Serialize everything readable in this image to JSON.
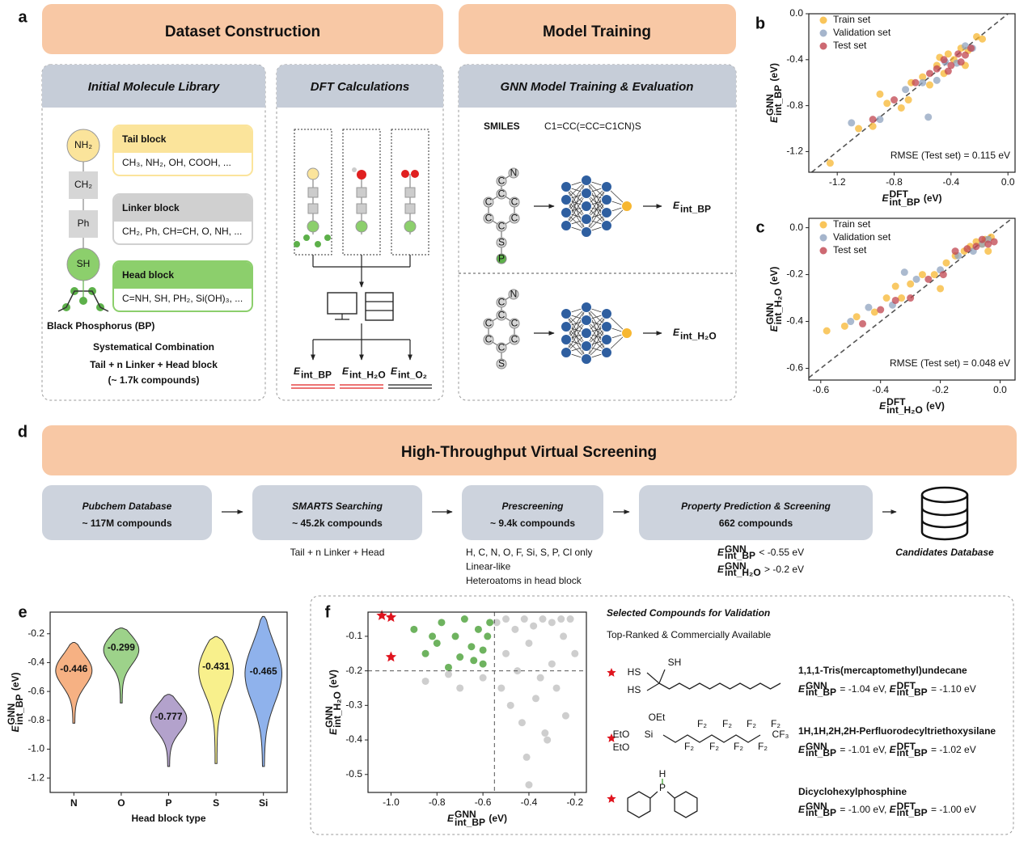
{
  "panel_labels": [
    "a",
    "b",
    "c",
    "d",
    "e",
    "f"
  ],
  "dataset": {
    "header": "Dataset Construction",
    "library": {
      "title": "Initial Molecule Library",
      "chain": [
        "NH₂",
        "CH₂",
        "Ph",
        "SH"
      ],
      "substrate": "Black Phosphorus (BP)",
      "blocks": [
        {
          "name": "Tail block",
          "examples": "CH₃, NH₂, OH, COOH, ..."
        },
        {
          "name": "Linker block",
          "examples": "CH₂, Ph, CH=CH, O, NH, ..."
        },
        {
          "name": "Head block",
          "examples": "C=NH, SH, PH₂, Si(OH)₃, ..."
        }
      ],
      "summary": [
        "Systematical Combination",
        "Tail + n Linker + Head block",
        "(~ 1.7k compounds)"
      ]
    },
    "dft": {
      "title": "DFT Calculations",
      "outputs": [
        {
          "sym": "E",
          "sub": "int_BP"
        },
        {
          "sym": "E",
          "sub": "int_H₂O"
        },
        {
          "sym": "E",
          "sub": "int_O₂"
        }
      ]
    }
  },
  "training": {
    "header": "Model Training",
    "title": "GNN Model Training & Evaluation",
    "smiles_label": "SMILES",
    "smiles": "C1=CC(=CC=C1CN)S",
    "models": [
      {
        "atoms": [
          "N",
          "C",
          "C",
          "C",
          "C",
          "C",
          "C",
          "C",
          "S",
          "P"
        ],
        "output": {
          "sym": "E",
          "sub": "int_BP"
        }
      },
      {
        "atoms": [
          "N",
          "C",
          "C",
          "C",
          "C",
          "C",
          "C",
          "C",
          "S"
        ],
        "output": {
          "sym": "E",
          "sub": "int_H₂O"
        }
      }
    ]
  },
  "screening": {
    "title": "High-Throughput Virtual Screening",
    "steps": [
      {
        "title": "Pubchem Database",
        "count": "~ 117M compounds"
      },
      {
        "title": "SMARTS Searching",
        "count": "~ 45.2k compounds",
        "notes": [
          "Tail + n Linker + Head"
        ]
      },
      {
        "title": "Prescreening",
        "count": "~ 9.4k compounds",
        "notes": [
          "H, C, N, O, F, Si, S, P, Cl only",
          "Linear-like",
          "Heteroatoms in head block"
        ]
      },
      {
        "title": "Property Prediction & Screening",
        "count": "662 compounds",
        "criteria": [
          {
            "sym": "E",
            "sup": "GNN",
            "sub": "int_BP",
            "text": " < -0.55 eV"
          },
          {
            "sym": "E",
            "sup": "GNN",
            "sub": "int_H₂O",
            "text": " > -0.2 eV"
          }
        ]
      }
    ],
    "final": "Candidates Database"
  },
  "validation": {
    "title": "Selected Compounds for Validation",
    "subtitle": "Top-Ranked & Commercially Available",
    "compounds": [
      {
        "name": "1,1,1-Tris(mercaptomethyl)undecane",
        "structure": [
          "SH",
          "HS",
          "HS"
        ],
        "energy": [
          {
            "sym": "E",
            "sup": "GNN",
            "sub": "int_BP",
            "text": " = -1.04 eV, "
          },
          {
            "sym": "E",
            "sup": "DFT",
            "sub": "int_BP",
            "text": " = -1.10 eV"
          }
        ]
      },
      {
        "name": "1H,1H,2H,2H-Perfluorodecyltriethoxysilane",
        "structure": [
          "OEt",
          "EtO",
          "Si",
          "EtO",
          "F₂",
          "F₂",
          "F₂",
          "F₂",
          "F₂",
          "F₂",
          "F₂",
          "F₂",
          "CF₃"
        ],
        "energy": [
          {
            "sym": "E",
            "sup": "GNN",
            "sub": "int_BP",
            "text": " = -1.01 eV, "
          },
          {
            "sym": "E",
            "sup": "DFT",
            "sub": "int_BP",
            "text": " = -1.02 eV"
          }
        ]
      },
      {
        "name": "Dicyclohexylphosphine",
        "structure": [
          "H",
          "P"
        ],
        "energy": [
          {
            "sym": "E",
            "sup": "GNN",
            "sub": "int_BP",
            "text": " = -1.00 eV, "
          },
          {
            "sym": "E",
            "sup": "DFT",
            "sub": "int_BP",
            "text": " = -1.00 eV"
          }
        ]
      }
    ]
  },
  "chart_data": [
    {
      "type": "scatter",
      "x_label": {
        "sym": "E",
        "sup": "DFT",
        "sub": "int_BP",
        "text": " (eV)"
      },
      "y_label": {
        "sym": "E",
        "sup": "GNN",
        "sub": "int_BP",
        "text": " (eV)"
      },
      "xlim": [
        -1.4,
        0.05
      ],
      "ylim": [
        -1.38,
        0.0
      ],
      "xticks": [
        -1.2,
        -0.8,
        -0.4,
        {
          "value": 0,
          "label": "0.0"
        }
      ],
      "yticks": [
        {
          "value": 0,
          "label": "0.0"
        },
        -0.4,
        -0.8,
        -1.2
      ],
      "diagonal": true,
      "legend": "upper left",
      "annotation": "RMSE (Test set) = 0.115 eV",
      "series": [
        {
          "name": "Train set",
          "color": "#f7b731",
          "x": [
            -1.25,
            -1.05,
            -0.95,
            -0.85,
            -0.75,
            -0.68,
            -0.6,
            -0.55,
            -0.5,
            -0.45,
            -0.42,
            -0.38,
            -0.33,
            -0.28,
            -0.22,
            -0.18,
            -0.3,
            -0.48,
            -0.9,
            -0.7
          ],
          "values": [
            -1.3,
            -1.0,
            -0.98,
            -0.78,
            -0.82,
            -0.6,
            -0.55,
            -0.62,
            -0.45,
            -0.52,
            -0.35,
            -0.4,
            -0.3,
            -0.32,
            -0.2,
            -0.22,
            -0.45,
            -0.38,
            -0.7,
            -0.75
          ]
        },
        {
          "name": "Validation set",
          "color": "#8fa3bf",
          "x": [
            -1.1,
            -0.9,
            -0.72,
            -0.6,
            -0.5,
            -0.44,
            -0.36,
            -0.3,
            -0.25,
            -0.56
          ],
          "values": [
            -0.95,
            -0.92,
            -0.66,
            -0.6,
            -0.58,
            -0.42,
            -0.43,
            -0.28,
            -0.3,
            -0.9
          ]
        },
        {
          "name": "Test set",
          "color": "#c0444f",
          "x": [
            -0.95,
            -0.8,
            -0.65,
            -0.55,
            -0.5,
            -0.45,
            -0.4,
            -0.35,
            -0.3,
            -0.26,
            -0.42,
            -0.33
          ],
          "values": [
            -0.92,
            -0.75,
            -0.6,
            -0.52,
            -0.48,
            -0.4,
            -0.45,
            -0.35,
            -0.36,
            -0.3,
            -0.5,
            -0.42
          ]
        }
      ]
    },
    {
      "type": "scatter",
      "x_label": {
        "sym": "E",
        "sup": "DFT",
        "sub": "int_H₂O",
        "text": " (eV)"
      },
      "y_label": {
        "sym": "E",
        "sup": "GNN",
        "sub": "int_H₂O",
        "text": " (eV)"
      },
      "xlim": [
        -0.64,
        0.05
      ],
      "ylim": [
        -0.65,
        0.04
      ],
      "xticks": [
        -0.6,
        -0.4,
        -0.2,
        {
          "value": 0,
          "label": "0.0"
        }
      ],
      "yticks": [
        {
          "value": 0,
          "label": "0.0"
        },
        -0.2,
        -0.4,
        -0.6
      ],
      "diagonal": true,
      "legend": "upper left",
      "annotation": "RMSE (Test set) = 0.048 eV",
      "series": [
        {
          "name": "Train set",
          "color": "#f7b731",
          "x": [
            -0.58,
            -0.52,
            -0.48,
            -0.42,
            -0.38,
            -0.33,
            -0.3,
            -0.26,
            -0.22,
            -0.18,
            -0.15,
            -0.12,
            -0.1,
            -0.08,
            -0.06,
            -0.05,
            -0.04,
            -0.03,
            -0.2,
            -0.35
          ],
          "values": [
            -0.44,
            -0.42,
            -0.38,
            -0.36,
            -0.3,
            -0.3,
            -0.24,
            -0.2,
            -0.2,
            -0.15,
            -0.12,
            -0.1,
            -0.08,
            -0.06,
            -0.07,
            -0.05,
            -0.1,
            -0.04,
            -0.26,
            -0.25
          ]
        },
        {
          "name": "Validation set",
          "color": "#8fa3bf",
          "x": [
            -0.5,
            -0.44,
            -0.36,
            -0.28,
            -0.2,
            -0.14,
            -0.09,
            -0.06,
            -0.04,
            -0.32
          ],
          "values": [
            -0.4,
            -0.34,
            -0.33,
            -0.22,
            -0.18,
            -0.12,
            -0.1,
            -0.07,
            -0.05,
            -0.19
          ]
        },
        {
          "name": "Test set",
          "color": "#c0444f",
          "x": [
            -0.46,
            -0.4,
            -0.3,
            -0.24,
            -0.19,
            -0.15,
            -0.11,
            -0.08,
            -0.06,
            -0.04,
            -0.02,
            -0.35
          ],
          "values": [
            -0.41,
            -0.35,
            -0.3,
            -0.22,
            -0.2,
            -0.1,
            -0.09,
            -0.08,
            -0.05,
            -0.07,
            -0.06,
            -0.31
          ]
        }
      ]
    },
    {
      "type": "violin",
      "x_label": "Head block type",
      "y_label": {
        "sym": "E",
        "sup": "GNN",
        "sub": "int_BP",
        "text": " (eV)"
      },
      "categories": [
        "N",
        "O",
        "P",
        "S",
        "Si"
      ],
      "values": [
        -0.446,
        -0.299,
        -0.777,
        -0.431,
        -0.465
      ],
      "min": [
        -0.82,
        -0.68,
        -1.12,
        -1.1,
        -1.12
      ],
      "max": [
        -0.26,
        -0.16,
        -0.62,
        -0.22,
        -0.08
      ],
      "colors": [
        "#f6b183",
        "#9dd28a",
        "#b3a2cc",
        "#f8f08c",
        "#8fb2ec"
      ],
      "ylim": [
        -1.3,
        -0.05
      ],
      "yticks": [
        -0.2,
        -0.4,
        -0.6,
        -0.8,
        {
          "value": -1,
          "label": "-1.0"
        },
        -1.2
      ]
    },
    {
      "type": "scatter",
      "x_label": {
        "sym": "E",
        "sup": "GNN",
        "sub": "int_BP",
        "text": " (eV)"
      },
      "y_label": {
        "sym": "E",
        "sup": "GNN",
        "sub": "int_H₂O",
        "text": " (eV)"
      },
      "xlim": [
        -1.1,
        -0.15
      ],
      "ylim": [
        -0.552,
        -0.03
      ],
      "xticks": [
        {
          "value": -1,
          "label": "-1.0"
        },
        -0.8,
        -0.6,
        -0.4,
        -0.2
      ],
      "yticks": [
        -0.1,
        -0.2,
        -0.3,
        -0.4,
        -0.5
      ],
      "thresholds": {
        "x": -0.55,
        "y": -0.2
      },
      "series": [
        {
          "color": "#bdbdbd",
          "marker": "circle",
          "x": [
            -0.54,
            -0.5,
            -0.46,
            -0.42,
            -0.38,
            -0.34,
            -0.3,
            -0.26,
            -0.22,
            -0.5,
            -0.45,
            -0.4,
            -0.35,
            -0.3,
            -0.25,
            -0.2,
            -0.48,
            -0.43,
            -0.37,
            -0.32,
            -0.28,
            -0.24,
            -0.52,
            -0.41,
            -0.33,
            -0.6,
            -0.7,
            -0.75,
            -0.85,
            -0.4
          ],
          "values": [
            -0.06,
            -0.05,
            -0.08,
            -0.05,
            -0.07,
            -0.05,
            -0.06,
            -0.05,
            -0.05,
            -0.15,
            -0.2,
            -0.12,
            -0.22,
            -0.18,
            -0.1,
            -0.15,
            -0.3,
            -0.35,
            -0.28,
            -0.4,
            -0.25,
            -0.33,
            -0.25,
            -0.45,
            -0.38,
            -0.22,
            -0.25,
            -0.21,
            -0.23,
            -0.53
          ]
        },
        {
          "color": "#3d9a2a",
          "marker": "circle",
          "x": [
            -0.9,
            -0.85,
            -0.8,
            -0.78,
            -0.72,
            -0.7,
            -0.68,
            -0.65,
            -0.62,
            -0.6,
            -0.58,
            -0.57,
            -0.64,
            -0.75,
            -0.6,
            -0.82
          ],
          "values": [
            -0.08,
            -0.15,
            -0.12,
            -0.06,
            -0.1,
            -0.16,
            -0.05,
            -0.13,
            -0.08,
            -0.18,
            -0.1,
            -0.06,
            -0.17,
            -0.19,
            -0.14,
            -0.1
          ]
        },
        {
          "color": "#e0141e",
          "marker": "star",
          "x": [
            -1.04,
            -1.0,
            -1.0
          ],
          "values": [
            -0.04,
            -0.045,
            -0.16
          ]
        }
      ]
    }
  ]
}
